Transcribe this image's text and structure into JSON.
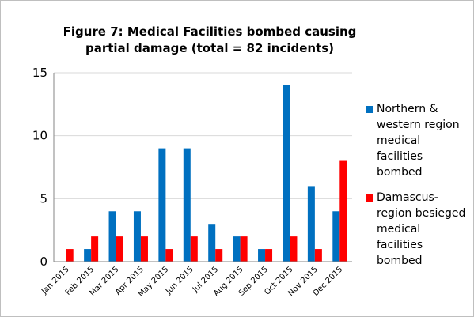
{
  "chart_data": {
    "type": "bar",
    "title": "Figure 7: Medical Facilities bombed causing partial damage (total = 82 incidents)",
    "categories": [
      "Jan 2015",
      "Feb 2015",
      "Mar 2015",
      "Apr 2015",
      "May 2015",
      "Jun 2015",
      "Jul 2015",
      "Aug 2015",
      "Sep 2015",
      "Oct 2015",
      "Nov 2015",
      "Dec 2015"
    ],
    "series": [
      {
        "name": "Northern & western region medical facilities bombed",
        "color": "#0070c0",
        "values": [
          0,
          1,
          4,
          4,
          9,
          9,
          3,
          2,
          1,
          14,
          6,
          4
        ]
      },
      {
        "name": "Damascus-region besieged medical facilities bombed",
        "color": "#ff0000",
        "values": [
          1,
          2,
          2,
          2,
          1,
          2,
          1,
          2,
          1,
          2,
          1,
          8
        ]
      }
    ],
    "ylim": [
      0,
      15
    ],
    "yticks": [
      0,
      5,
      10,
      15
    ],
    "grid": true,
    "legend": "right"
  }
}
